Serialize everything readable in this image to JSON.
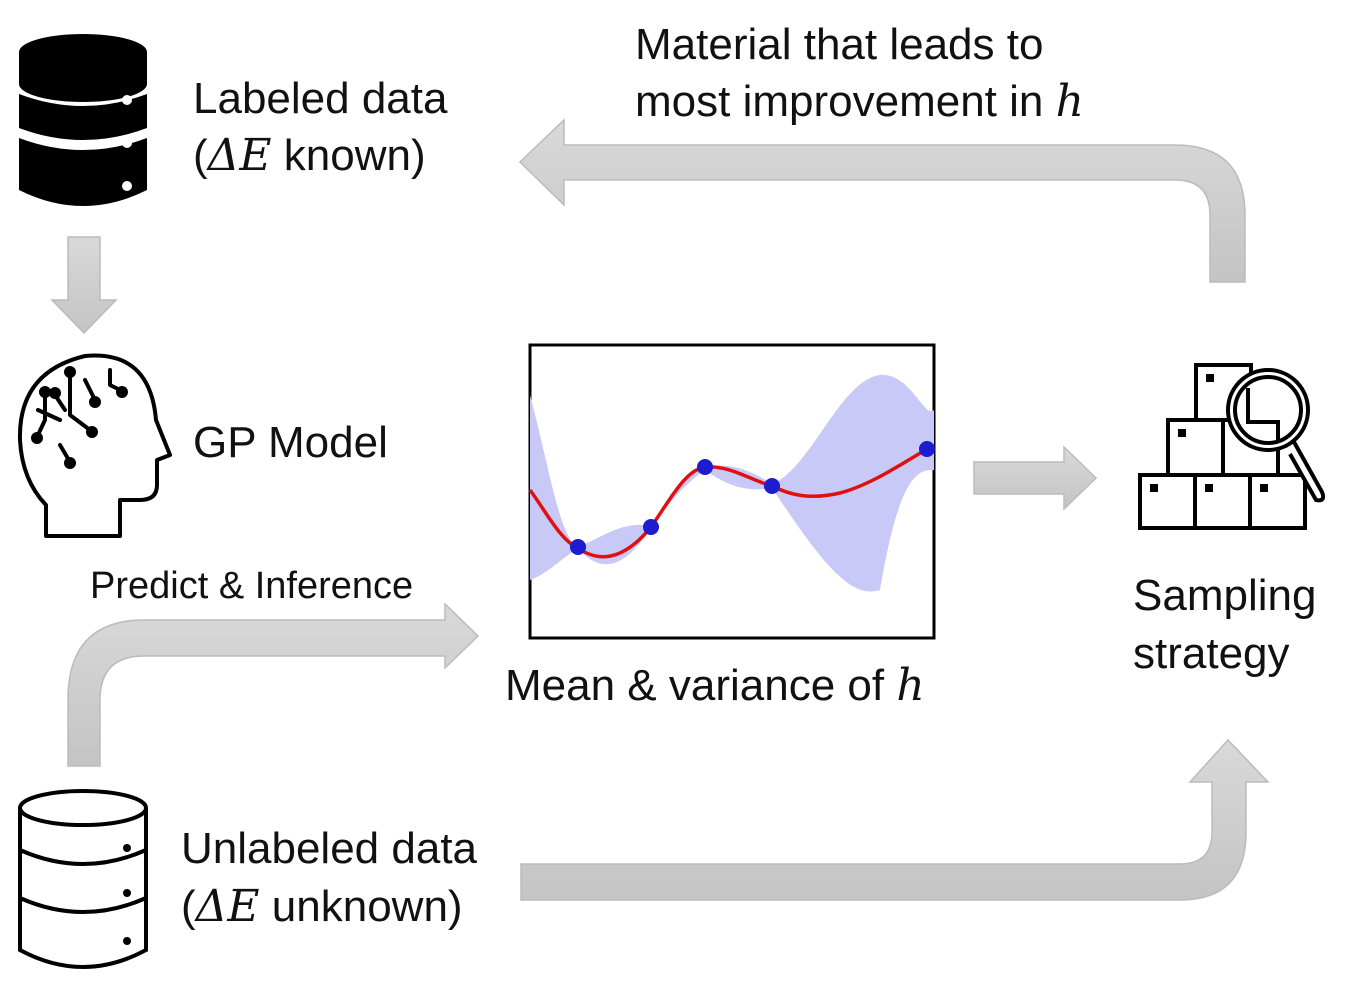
{
  "labeled": {
    "line1": "Labeled data",
    "line2_open": "(",
    "symbol": "ΔE",
    "line2_rest": " known)"
  },
  "gp_model": {
    "label": "GP Model"
  },
  "predict": {
    "label": "Predict & Inference"
  },
  "unlabeled": {
    "line1": "Unlabeled data",
    "line2_open": "(",
    "symbol": "ΔE",
    "line2_rest": " unknown)"
  },
  "mean_var": {
    "label": "Mean & variance of ",
    "var": "h"
  },
  "sampling": {
    "line1": "Sampling",
    "line2": "strategy"
  },
  "feedback": {
    "line1": "Material that leads to",
    "line2": "most improvement in ",
    "var": "h"
  },
  "colors": {
    "arrow": "#cfcfcf",
    "arrow_edge": "#bdbdbd",
    "band": "#c9c9f7",
    "mean": "#e01010",
    "points": "#1c1cd0"
  }
}
